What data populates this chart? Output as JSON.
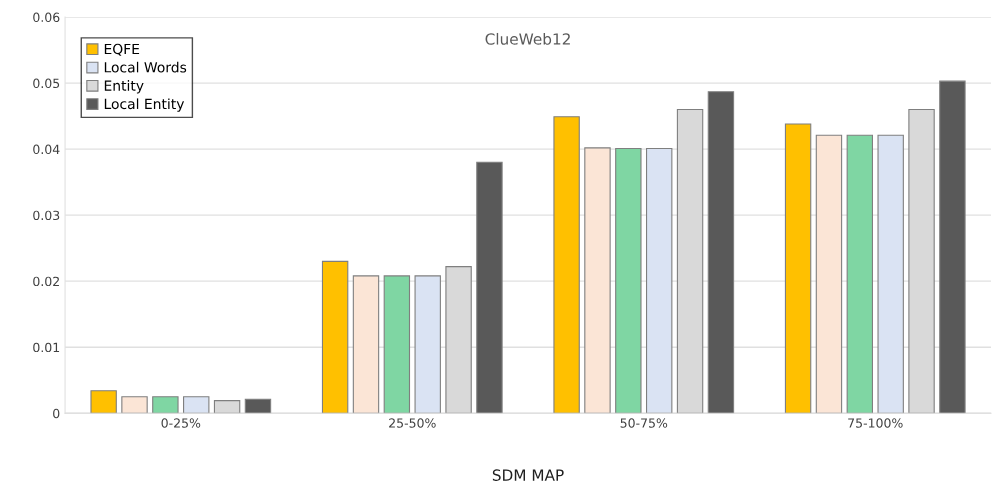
{
  "chart_data": {
    "type": "bar",
    "title": "ClueWeb12",
    "xlabel": "SDM MAP",
    "categories": [
      "0-25%",
      "25-50%",
      "50-75%",
      "75-100%"
    ],
    "series": [
      {
        "name": "EQFE",
        "color": "#ffc000",
        "values": [
          0.0034,
          0.023,
          0.0449,
          0.0438
        ]
      },
      {
        "color": "#fbe5d6",
        "values": [
          0.0025,
          0.0208,
          0.0402,
          0.0421
        ]
      },
      {
        "color": "#7fd6a3",
        "values": [
          0.0025,
          0.0208,
          0.0401,
          0.0421
        ]
      },
      {
        "name": "Local Words",
        "color": "#dae3f3",
        "values": [
          0.0025,
          0.0208,
          0.0401,
          0.0421
        ]
      },
      {
        "name": "Entity",
        "color": "#d9d9d9",
        "values": [
          0.0019,
          0.0222,
          0.046,
          0.046
        ]
      },
      {
        "name": "Local Entity",
        "color": "#595959",
        "values": [
          0.0021,
          0.038,
          0.0487,
          0.0503
        ]
      }
    ],
    "ylim": [
      0,
      0.06
    ],
    "yticks": [
      0,
      0.01,
      0.02,
      0.03,
      0.04,
      0.05,
      0.06
    ],
    "grid": "y",
    "legend": "top left"
  }
}
